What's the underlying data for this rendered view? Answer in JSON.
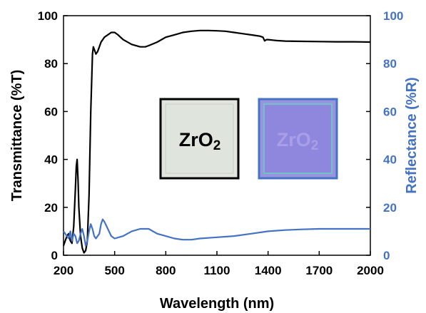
{
  "colors": {
    "transmittance": "#000000",
    "reflectance": "#4472C4",
    "right_axis": "#4472C4",
    "sample_clear_fill": "#dfe4dc",
    "sample_clear_border": "#000000",
    "sample_coated_fill": "#8f86de",
    "sample_coated_border": "#4472C4"
  },
  "insets": [
    {
      "label_main": "ZrO",
      "label_sub": "2",
      "text_color": "#000000"
    },
    {
      "label_main": "ZrO",
      "label_sub": "2",
      "text_color": "#a99ee8"
    }
  ],
  "chart_data": {
    "type": "line",
    "xlabel": "Wavelength (nm)",
    "ylabel": "Transmittance (%T)",
    "ylabel_right": "Reflectance (%R)",
    "xlim": [
      200,
      2000
    ],
    "ylim": [
      0,
      100
    ],
    "ylim_right": [
      0,
      100
    ],
    "x_ticks": [
      200,
      500,
      800,
      1100,
      1400,
      1700,
      2000
    ],
    "y_ticks": [
      0,
      20,
      40,
      60,
      80,
      100
    ],
    "y_ticks_right": [
      0,
      20,
      40,
      60,
      80,
      100
    ],
    "grid": false,
    "legend": "none",
    "series": [
      {
        "axis": "left",
        "x": [
          200,
          210,
          220,
          230,
          240,
          250,
          260,
          270,
          275,
          280,
          285,
          290,
          300,
          310,
          320,
          330,
          340,
          350,
          360,
          370,
          375,
          380,
          390,
          400,
          410,
          420,
          440,
          460,
          480,
          500,
          520,
          550,
          600,
          650,
          680,
          700,
          750,
          800,
          850,
          900,
          950,
          1000,
          1050,
          1100,
          1150,
          1200,
          1250,
          1300,
          1350,
          1370,
          1380,
          1390,
          1400,
          1450,
          1500,
          1600,
          1700,
          1800,
          1900,
          2000
        ],
        "y": [
          4,
          6,
          8,
          9,
          6,
          5,
          12,
          28,
          37,
          40,
          32,
          20,
          8,
          3,
          1,
          2,
          6,
          25,
          60,
          84,
          87,
          86,
          84,
          85,
          87,
          89,
          91,
          92,
          93,
          93,
          92,
          90,
          88,
          87,
          87,
          87.5,
          89,
          91,
          92,
          93,
          93.5,
          93.8,
          93.8,
          93.7,
          93.5,
          93,
          92.5,
          92,
          91.5,
          91,
          89.5,
          90,
          90,
          89.6,
          89.4,
          89.3,
          89.2,
          89.1,
          89.1,
          89
        ]
      },
      {
        "axis": "right",
        "x": [
          200,
          210,
          220,
          230,
          240,
          250,
          260,
          270,
          280,
          290,
          300,
          310,
          320,
          330,
          340,
          350,
          360,
          370,
          380,
          390,
          400,
          410,
          420,
          430,
          440,
          460,
          480,
          500,
          550,
          600,
          650,
          700,
          750,
          800,
          850,
          900,
          950,
          1000,
          1100,
          1200,
          1300,
          1400,
          1500,
          1600,
          1700,
          1800,
          1900,
          2000
        ],
        "y": [
          10,
          9,
          8,
          7,
          10,
          6,
          9,
          8,
          5,
          6,
          9,
          11,
          8,
          4,
          6,
          10,
          13,
          11,
          8,
          7,
          8,
          9,
          13,
          15,
          14,
          11,
          8,
          7,
          8,
          10,
          11,
          11,
          9,
          8,
          7,
          6.5,
          6.5,
          7,
          7.5,
          8,
          9,
          10,
          10.5,
          10.8,
          11,
          11,
          11,
          11
        ]
      }
    ]
  }
}
